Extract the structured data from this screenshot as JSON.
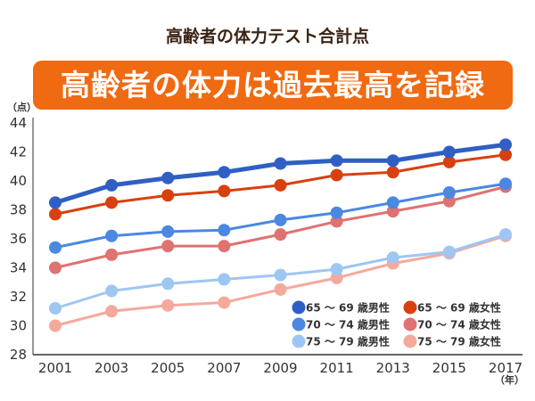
{
  "title": "高齢者の体力テスト合計点",
  "banner": "高齢者の体力は過去最高を記録",
  "chart_data": {
    "type": "line",
    "title": "高齢者の体力テスト合計点",
    "ylabel": "（点）",
    "xlabel": "（年）",
    "ylim": [
      28,
      44
    ],
    "yticks": [
      28,
      30,
      32,
      34,
      36,
      38,
      40,
      42,
      44
    ],
    "x": [
      2001,
      2003,
      2005,
      2007,
      2009,
      2011,
      2013,
      2015,
      2017
    ],
    "xticks": [
      "2001",
      "2003",
      "2005",
      "2007",
      "2009",
      "2011",
      "2013",
      "2015",
      "2017"
    ],
    "grid": false,
    "legend": "bottom-right",
    "series": [
      {
        "name": "65 ～ 69 歳男性",
        "color": "#2f5fc4",
        "values": [
          38.5,
          39.7,
          40.2,
          40.6,
          41.2,
          41.4,
          41.4,
          42.0,
          42.5
        ]
      },
      {
        "name": "65 ～ 69 歳女性",
        "color": "#d9400f",
        "values": [
          37.7,
          38.5,
          39.0,
          39.3,
          39.7,
          40.4,
          40.6,
          41.3,
          41.8
        ]
      },
      {
        "name": "70 ～ 74 歳男性",
        "color": "#4a88e2",
        "values": [
          35.4,
          36.2,
          36.5,
          36.6,
          37.3,
          37.8,
          38.5,
          39.2,
          39.8
        ]
      },
      {
        "name": "70 ～ 74 歳女性",
        "color": "#e07272",
        "values": [
          34.0,
          34.9,
          35.5,
          35.5,
          36.3,
          37.2,
          37.9,
          38.6,
          39.6
        ]
      },
      {
        "name": "75 ～ 79 歳男性",
        "color": "#9ec6f3",
        "values": [
          31.2,
          32.4,
          32.9,
          33.2,
          33.5,
          33.9,
          34.7,
          35.1,
          36.3
        ]
      },
      {
        "name": "75 ～ 79 歳女性",
        "color": "#f5a99c",
        "values": [
          30.0,
          31.0,
          31.4,
          31.6,
          32.5,
          33.3,
          34.3,
          35.0,
          36.2
        ]
      }
    ]
  }
}
